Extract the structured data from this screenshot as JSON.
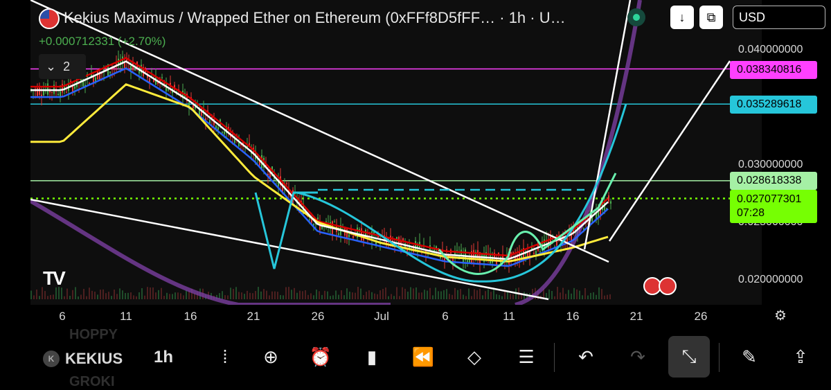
{
  "header": {
    "title": "Kekius Maximus / Wrapped Ether on Ethereum (0xFFf8D5fFF…  · 1h · U…",
    "change": "+0.000712331 (+2.70%)",
    "indicators_count": "2",
    "currency": "USD",
    "download_icon": "arrow-down-icon",
    "fullscreen_icon": "fullscreen-icon"
  },
  "price_axis": {
    "ticks": [
      "0.040000000",
      "0.030000000",
      "0.025000000",
      "0.020000000"
    ]
  },
  "price_tags": [
    {
      "label": "0.038340816",
      "color": "#ff40ff"
    },
    {
      "label": "0.035289618",
      "color": "#26c6da"
    },
    {
      "label": "0.028618338",
      "color": "#a5f0a5"
    },
    {
      "label": "0.027077301",
      "color": "#76ff03"
    }
  ],
  "countdown": "07:28",
  "time_axis": {
    "labels": [
      "6",
      "11",
      "16",
      "21",
      "26",
      "Jul",
      "6",
      "11",
      "16",
      "21",
      "26"
    ]
  },
  "toolbar": {
    "symbol": "KEKIUS",
    "coin_badge": "K",
    "ghost_above": "HOPPY",
    "ghost_below": "GROKI",
    "timeframe": "1h",
    "buttons": [
      {
        "name": "compare-button",
        "icon": "dots-vertical-icon",
        "glyph": "⁞"
      },
      {
        "name": "add-symbol-button",
        "icon": "plus-circle-icon",
        "glyph": "⊕"
      },
      {
        "name": "alert-button",
        "icon": "alarm-clock-icon",
        "glyph": "⏰"
      },
      {
        "name": "chart-type-button",
        "icon": "candlestick-icon",
        "glyph": "▮"
      },
      {
        "name": "replay-button",
        "icon": "rewind-icon",
        "glyph": "⏪"
      },
      {
        "name": "layers-button",
        "icon": "layers-icon",
        "glyph": "◇"
      },
      {
        "name": "settings-button",
        "icon": "sliders-icon",
        "glyph": "☰"
      },
      {
        "name": "undo-button",
        "icon": "undo-icon",
        "glyph": "↶"
      },
      {
        "name": "redo-button",
        "icon": "redo-icon",
        "glyph": "↷"
      },
      {
        "name": "collapse-button",
        "icon": "collapse-icon",
        "glyph": "⤡"
      },
      {
        "name": "drawing-tools-button",
        "icon": "brush-icon",
        "glyph": "✎"
      },
      {
        "name": "share-button",
        "icon": "share-icon",
        "glyph": "⇪"
      }
    ]
  },
  "chart_data": {
    "type": "line",
    "y_axis_ticks": [
      0.02,
      0.025,
      0.03,
      0.04
    ],
    "horizontal_levels": [
      0.038340816,
      0.035289618,
      0.028618338,
      0.027077301
    ],
    "x": [
      "6",
      "11",
      "16",
      "21",
      "26",
      "Jul",
      "6",
      "11",
      "16",
      "21",
      "26"
    ],
    "series": [
      {
        "color": "#ffffff",
        "values": [
          0.0365,
          0.039,
          0.0355,
          0.031,
          0.0248,
          0.0235,
          0.0222,
          0.0218,
          0.024,
          0.029,
          0.0271
        ]
      },
      {
        "color": "#ffeb3b",
        "values": [
          0.032,
          0.037,
          0.035,
          0.029,
          0.025,
          0.0232,
          0.022,
          0.0216,
          0.0228,
          0.0245,
          0.025
        ]
      }
    ],
    "colors": {
      "up": "#4caf50",
      "down": "#e53935",
      "white_line": "#ffffff",
      "yellow_ma": "#ffeb3b",
      "red_ma": "#d50000",
      "blue_ma": "#2962ff",
      "purple_ma": "#7b3fa0",
      "cyan_curve": "#26c6da",
      "green_curve": "#69f0ae"
    }
  }
}
